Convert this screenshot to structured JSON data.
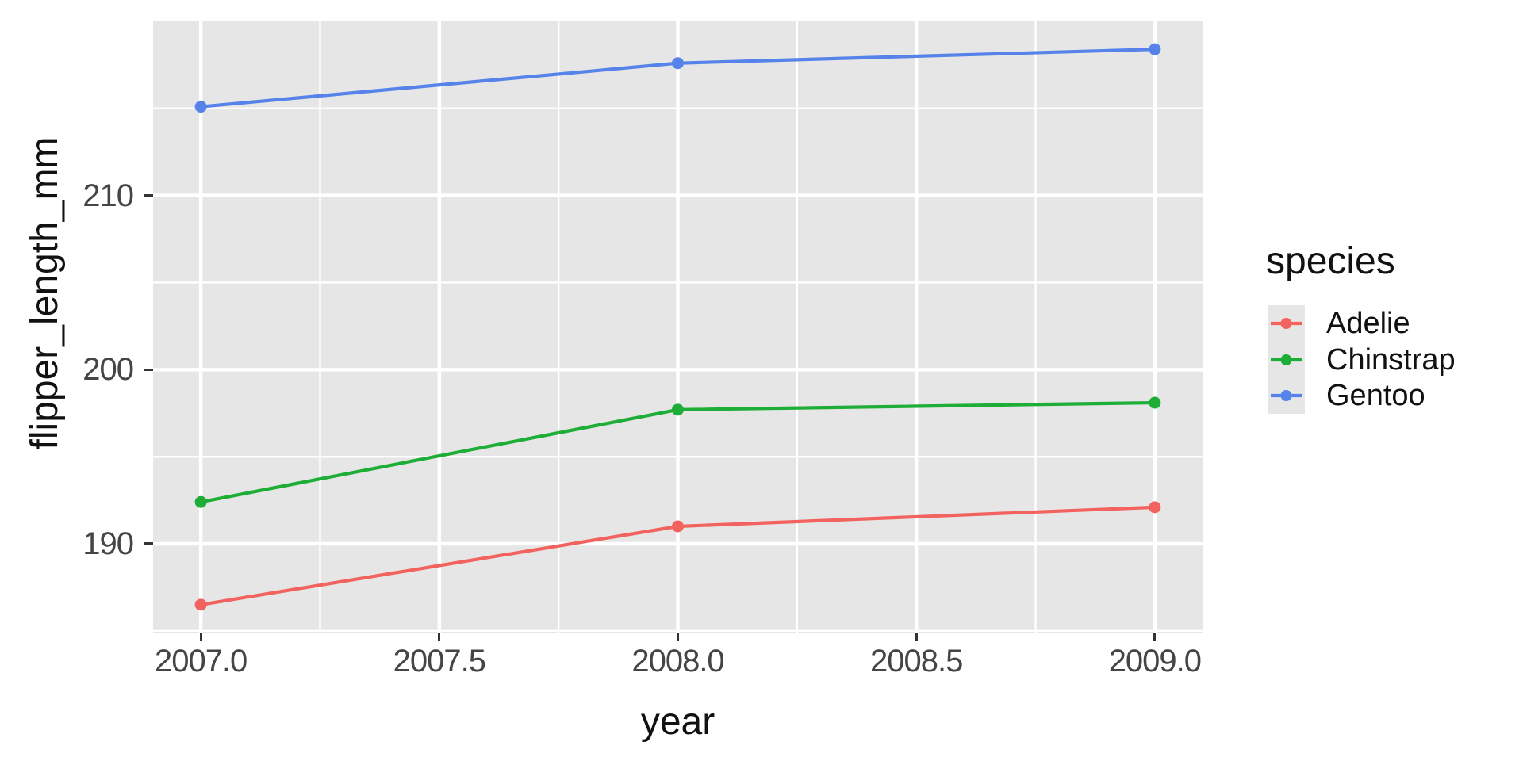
{
  "figure": {
    "background": "#FFFFFF",
    "panel_background": "#E6E6E6",
    "grid_color": "#FFFFFF",
    "tick_mark_color": "#333333",
    "tick_label_color": "#454545",
    "title_color": "#111111"
  },
  "chart_data": {
    "type": "line",
    "title": "",
    "xlabel": "year",
    "ylabel": "flipper_length_mm",
    "x": [
      2007,
      2008,
      2009
    ],
    "series": [
      {
        "name": "Adelie",
        "color": "#F2635F",
        "values": [
          186.5,
          191.0,
          192.1
        ]
      },
      {
        "name": "Chinstrap",
        "color": "#1EAD37",
        "values": [
          192.4,
          197.7,
          198.1
        ]
      },
      {
        "name": "Gentoo",
        "color": "#5583EA",
        "values": [
          215.1,
          217.6,
          218.4
        ]
      }
    ],
    "xlim": [
      2006.9,
      2009.1
    ],
    "ylim": [
      184.9,
      220.0
    ],
    "x_ticks": [
      2007.0,
      2007.5,
      2008.0,
      2008.5,
      2009.0
    ],
    "x_tick_labels": [
      "2007.0",
      "2007.5",
      "2008.0",
      "2008.5",
      "2009.0"
    ],
    "x_minor_ticks": [
      2007.25,
      2007.75,
      2008.25,
      2008.75
    ],
    "y_ticks": [
      190,
      200,
      210
    ],
    "y_tick_labels": [
      "190",
      "200",
      "210"
    ],
    "y_minor_ticks": [
      185,
      195,
      205,
      215
    ],
    "grid": true,
    "legend_position": "right"
  },
  "legend": {
    "title": "species",
    "items": [
      {
        "label": "Adelie"
      },
      {
        "label": "Chinstrap"
      },
      {
        "label": "Gentoo"
      }
    ]
  }
}
